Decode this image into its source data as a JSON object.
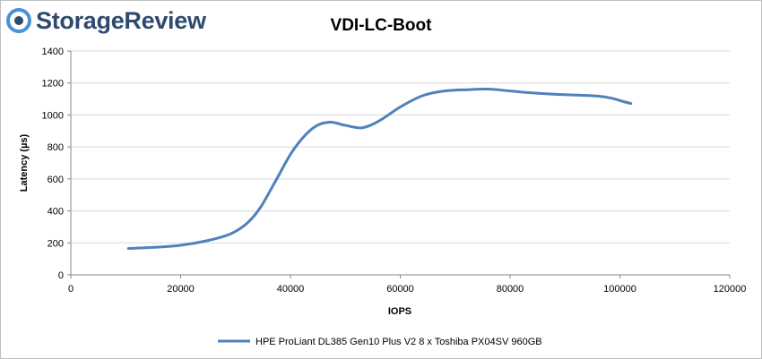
{
  "brand": {
    "name": "StorageReview",
    "color": "#2f4a6e",
    "accent": "#4a90d9",
    "icon": "storagereview-logo-icon"
  },
  "chart_data": {
    "type": "line",
    "title": "VDI-LC-Boot",
    "xlabel": "IOPS",
    "ylabel": "Latency (µs)",
    "xlim": [
      0,
      120000
    ],
    "ylim": [
      0,
      1400
    ],
    "xticks": [
      "0",
      "20000",
      "40000",
      "60000",
      "80000",
      "100000",
      "120000"
    ],
    "yticks": [
      "0",
      "200",
      "400",
      "600",
      "800",
      "1000",
      "1200",
      "1400"
    ],
    "grid": "horizontal",
    "legend_position": "bottom",
    "series": [
      {
        "name": "HPE ProLiant DL385 Gen10 Plus V2 8 x Toshiba PX04SV 960GB",
        "color": "#4f81bd",
        "x": [
          10500,
          15000,
          20000,
          25000,
          29000,
          32000,
          34500,
          37500,
          40500,
          44000,
          47000,
          50000,
          53000,
          56000,
          60000,
          64000,
          68000,
          72000,
          76000,
          80000,
          84000,
          88000,
          92000,
          96000,
          98500,
          100500,
          102000
        ],
        "y": [
          165,
          172,
          185,
          215,
          255,
          320,
          420,
          600,
          780,
          915,
          955,
          935,
          920,
          960,
          1050,
          1120,
          1150,
          1158,
          1162,
          1150,
          1138,
          1130,
          1125,
          1118,
          1105,
          1085,
          1072
        ]
      }
    ]
  }
}
